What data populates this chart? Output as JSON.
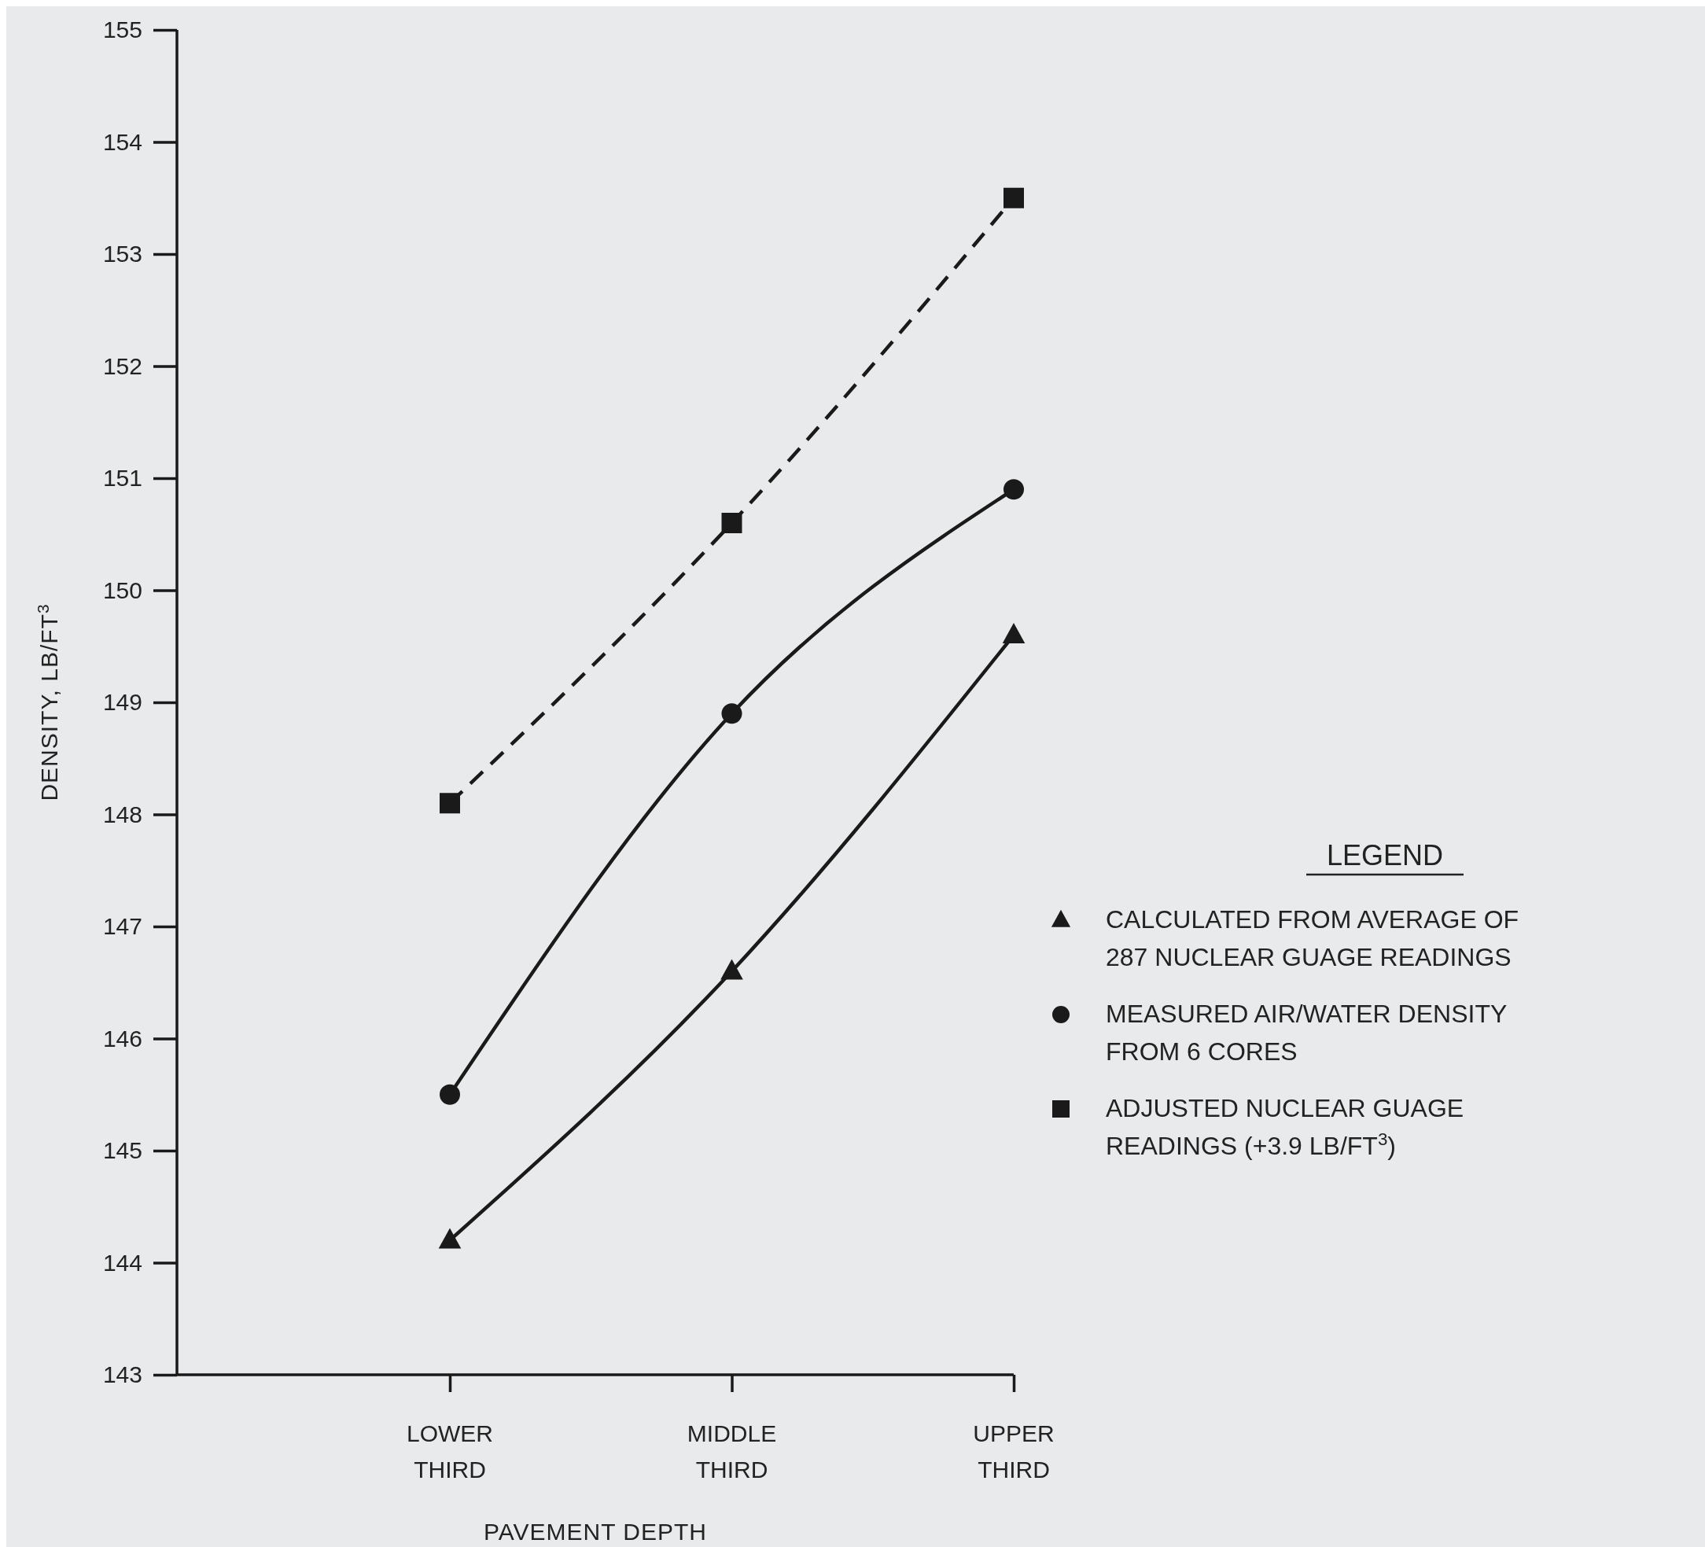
{
  "chart_data": {
    "type": "line",
    "xlabel": "PAVEMENT DEPTH",
    "ylabel": "DENSITY, LB/FT$^{3}$",
    "legend_title": "LEGEND",
    "legend": "right",
    "grid": false,
    "categories": [
      "LOWER THIRD",
      "MIDDLE THIRD",
      "UPPER THIRD"
    ],
    "ylim": [
      143,
      155
    ],
    "yticks": [
      143,
      144,
      145,
      146,
      147,
      148,
      149,
      150,
      151,
      152,
      153,
      154,
      155
    ],
    "series": [
      {
        "name": "CALCULATED FROM AVERAGE OF 287 NUCLEAR GUAGE READINGS",
        "color": "#1a1a1a",
        "marker": "triangle",
        "line_style": "solid",
        "values": [
          144.2,
          146.6,
          149.6
        ]
      },
      {
        "name": "MEASURED AIR/WATER DENSITY FROM 6 CORES",
        "color": "#1a1a1a",
        "marker": "circle",
        "line_style": "solid",
        "values": [
          145.5,
          148.9,
          150.9
        ]
      },
      {
        "name": "ADJUSTED NUCLEAR GUAGE READINGS (+3.9 LB/FT$^{3}$)",
        "color": "#1a1a1a",
        "marker": "square",
        "line_style": "dashed",
        "values": [
          148.1,
          150.6,
          153.5
        ]
      }
    ]
  }
}
